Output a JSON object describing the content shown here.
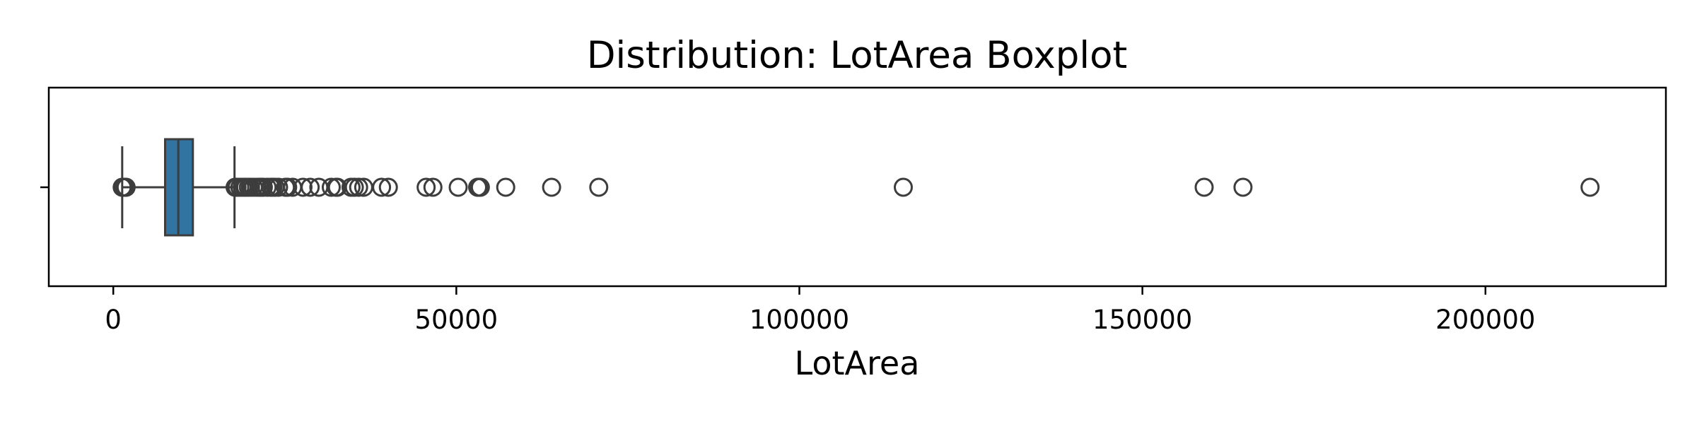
{
  "chart_data": {
    "type": "boxplot",
    "title": "Distribution: LotArea Boxplot",
    "xlabel": "LotArea",
    "ylabel": "",
    "xlim": [
      -9400,
      226300
    ],
    "xticks": [
      0,
      50000,
      100000,
      150000,
      200000
    ],
    "xtick_labels": [
      "0",
      "50000",
      "100000",
      "150000",
      "200000"
    ],
    "grid": false,
    "box": {
      "min_whisker": 1300,
      "q1": 7554,
      "median": 9478,
      "q3": 11602,
      "max_whisker": 17671
    },
    "outliers": [
      1300,
      1477,
      1491,
      1526,
      1533,
      1596,
      1680,
      1869,
      17755,
      17871,
      17920,
      18030,
      18450,
      18800,
      19138,
      19296,
      19690,
      20000,
      20431,
      20896,
      21286,
      21384,
      21535,
      21695,
      21872,
      22420,
      22950,
      23257,
      23595,
      24090,
      25095,
      25286,
      25419,
      26142,
      27650,
      28698,
      29959,
      31770,
      32463,
      32668,
      34650,
      35133,
      35760,
      36500,
      39104,
      40094,
      45600,
      46589,
      50271,
      53107,
      53227,
      53504,
      57200,
      63887,
      70761,
      115149,
      159000,
      164660,
      215245
    ],
    "colors": {
      "box_fill": "#3274a1",
      "line": "#3d3d3d",
      "frame": "#000000"
    }
  }
}
